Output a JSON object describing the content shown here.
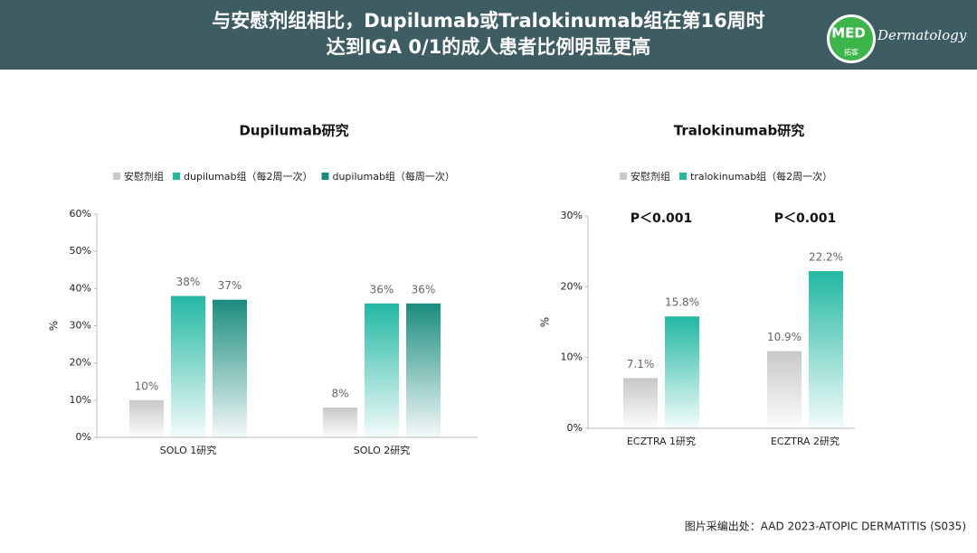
{
  "header": {
    "title_lines": [
      "与安慰剂组相比，Dupilumab或Tralokinumab组在第16周时",
      "达到IGA 0/1的成人患者比例明显更高"
    ],
    "logo": "MED",
    "logo_sub": "拓客",
    "brand": "Dermatology"
  },
  "chart_data": [
    {
      "type": "bar",
      "title": "Dupilumab研究",
      "ylabel": "%",
      "categories": [
        "SOLO 1研究",
        "SOLO 2研究"
      ],
      "series": [
        {
          "name": "安慰剂组",
          "color": "#c8c8c8",
          "values": [
            10,
            8
          ],
          "value_labels": [
            "10%",
            "8%"
          ]
        },
        {
          "name": "dupilumab组（每2周一次）",
          "color": "#22b8a2",
          "values": [
            38,
            36
          ],
          "value_labels": [
            "38%",
            "36%"
          ]
        },
        {
          "name": "dupilumab组（每周一次）",
          "color": "#1a8c7e",
          "values": [
            37,
            36
          ],
          "value_labels": [
            "37%",
            "36%"
          ]
        }
      ],
      "ylim": [
        0,
        60
      ],
      "yticks": [
        {
          "value": 0,
          "label": "0%"
        },
        {
          "value": 10,
          "label": "10%"
        },
        {
          "value": 20,
          "label": "20%"
        },
        {
          "value": 30,
          "label": "30%"
        },
        {
          "value": 40,
          "label": "40%"
        },
        {
          "value": 50,
          "label": "50%"
        },
        {
          "value": 60,
          "label": "60%"
        }
      ],
      "legend": "top"
    },
    {
      "type": "bar",
      "title": "Tralokinumab研究",
      "ylabel": "%",
      "categories": [
        "ECZTRA 1研究",
        "ECZTRA 2研究"
      ],
      "series": [
        {
          "name": "安慰剂组",
          "color": "#c8c8c8",
          "values": [
            7.1,
            10.9
          ],
          "value_labels": [
            "7.1%",
            "10.9%"
          ]
        },
        {
          "name": "tralokinumab组（每2周一次）",
          "color": "#22b8a2",
          "values": [
            15.8,
            22.2
          ],
          "value_labels": [
            "15.8%",
            "22.2%"
          ]
        }
      ],
      "annotations": [
        "P＜0.001",
        "P＜0.001"
      ],
      "ylim": [
        0,
        30
      ],
      "yticks": [
        {
          "value": 0,
          "label": "0%"
        },
        {
          "value": 10,
          "label": "10%"
        },
        {
          "value": 20,
          "label": "20%"
        },
        {
          "value": 30,
          "label": "30%"
        }
      ],
      "legend": "top"
    }
  ],
  "footer": "图片采编出处：AAD 2023-ATOPIC DERMATITIS (S035)"
}
